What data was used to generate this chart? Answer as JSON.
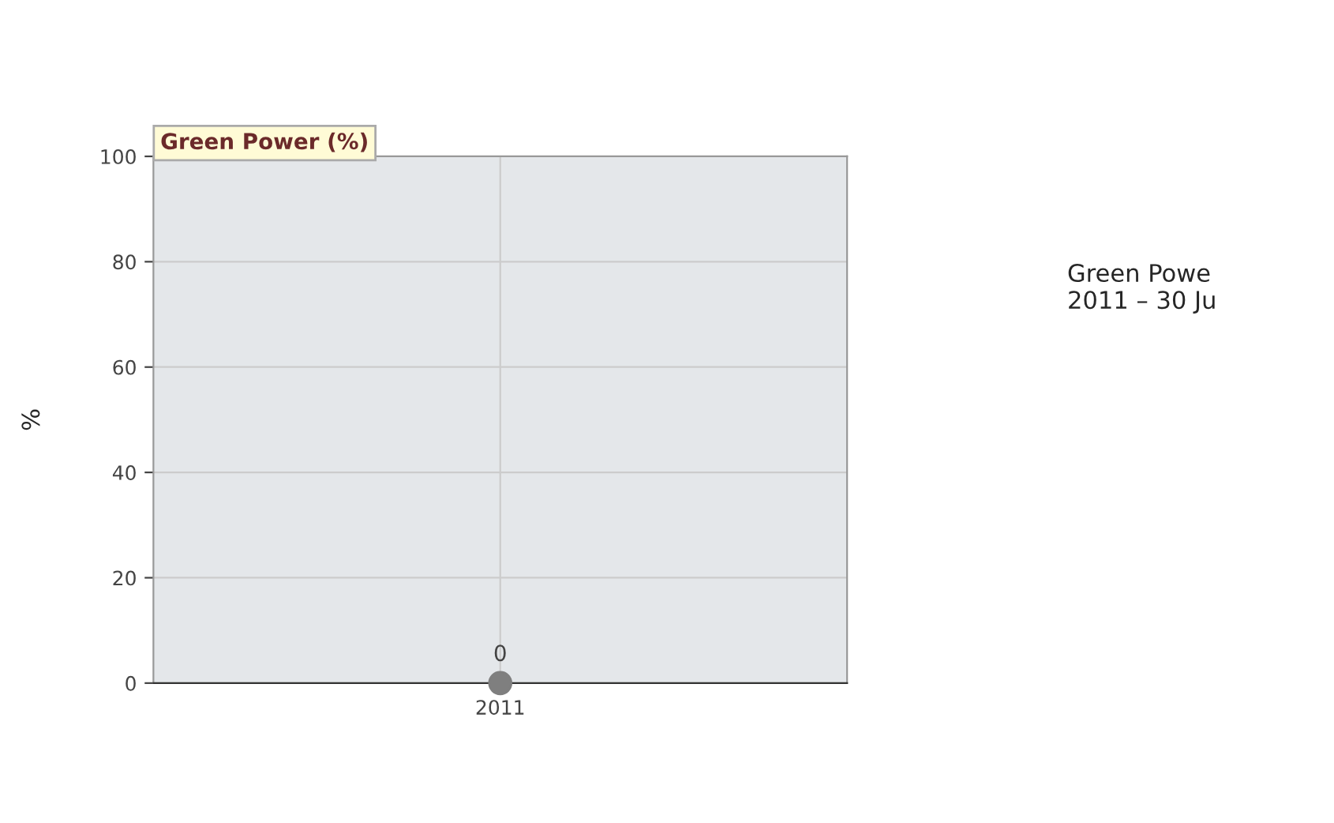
{
  "chart_data": {
    "type": "line",
    "title": "Green Power (%)",
    "ylabel": "%",
    "categories": [
      "2011"
    ],
    "series": [
      {
        "color": "#7f7f7f",
        "values": [
          0
        ]
      }
    ],
    "ylim": [
      0,
      100
    ],
    "yticks": [
      0,
      20,
      40,
      60,
      80,
      100
    ],
    "grid": true,
    "marker": "circle",
    "data_labels": true,
    "annotations": [
      "Green Powe\n2011 – 30 Ju"
    ]
  }
}
